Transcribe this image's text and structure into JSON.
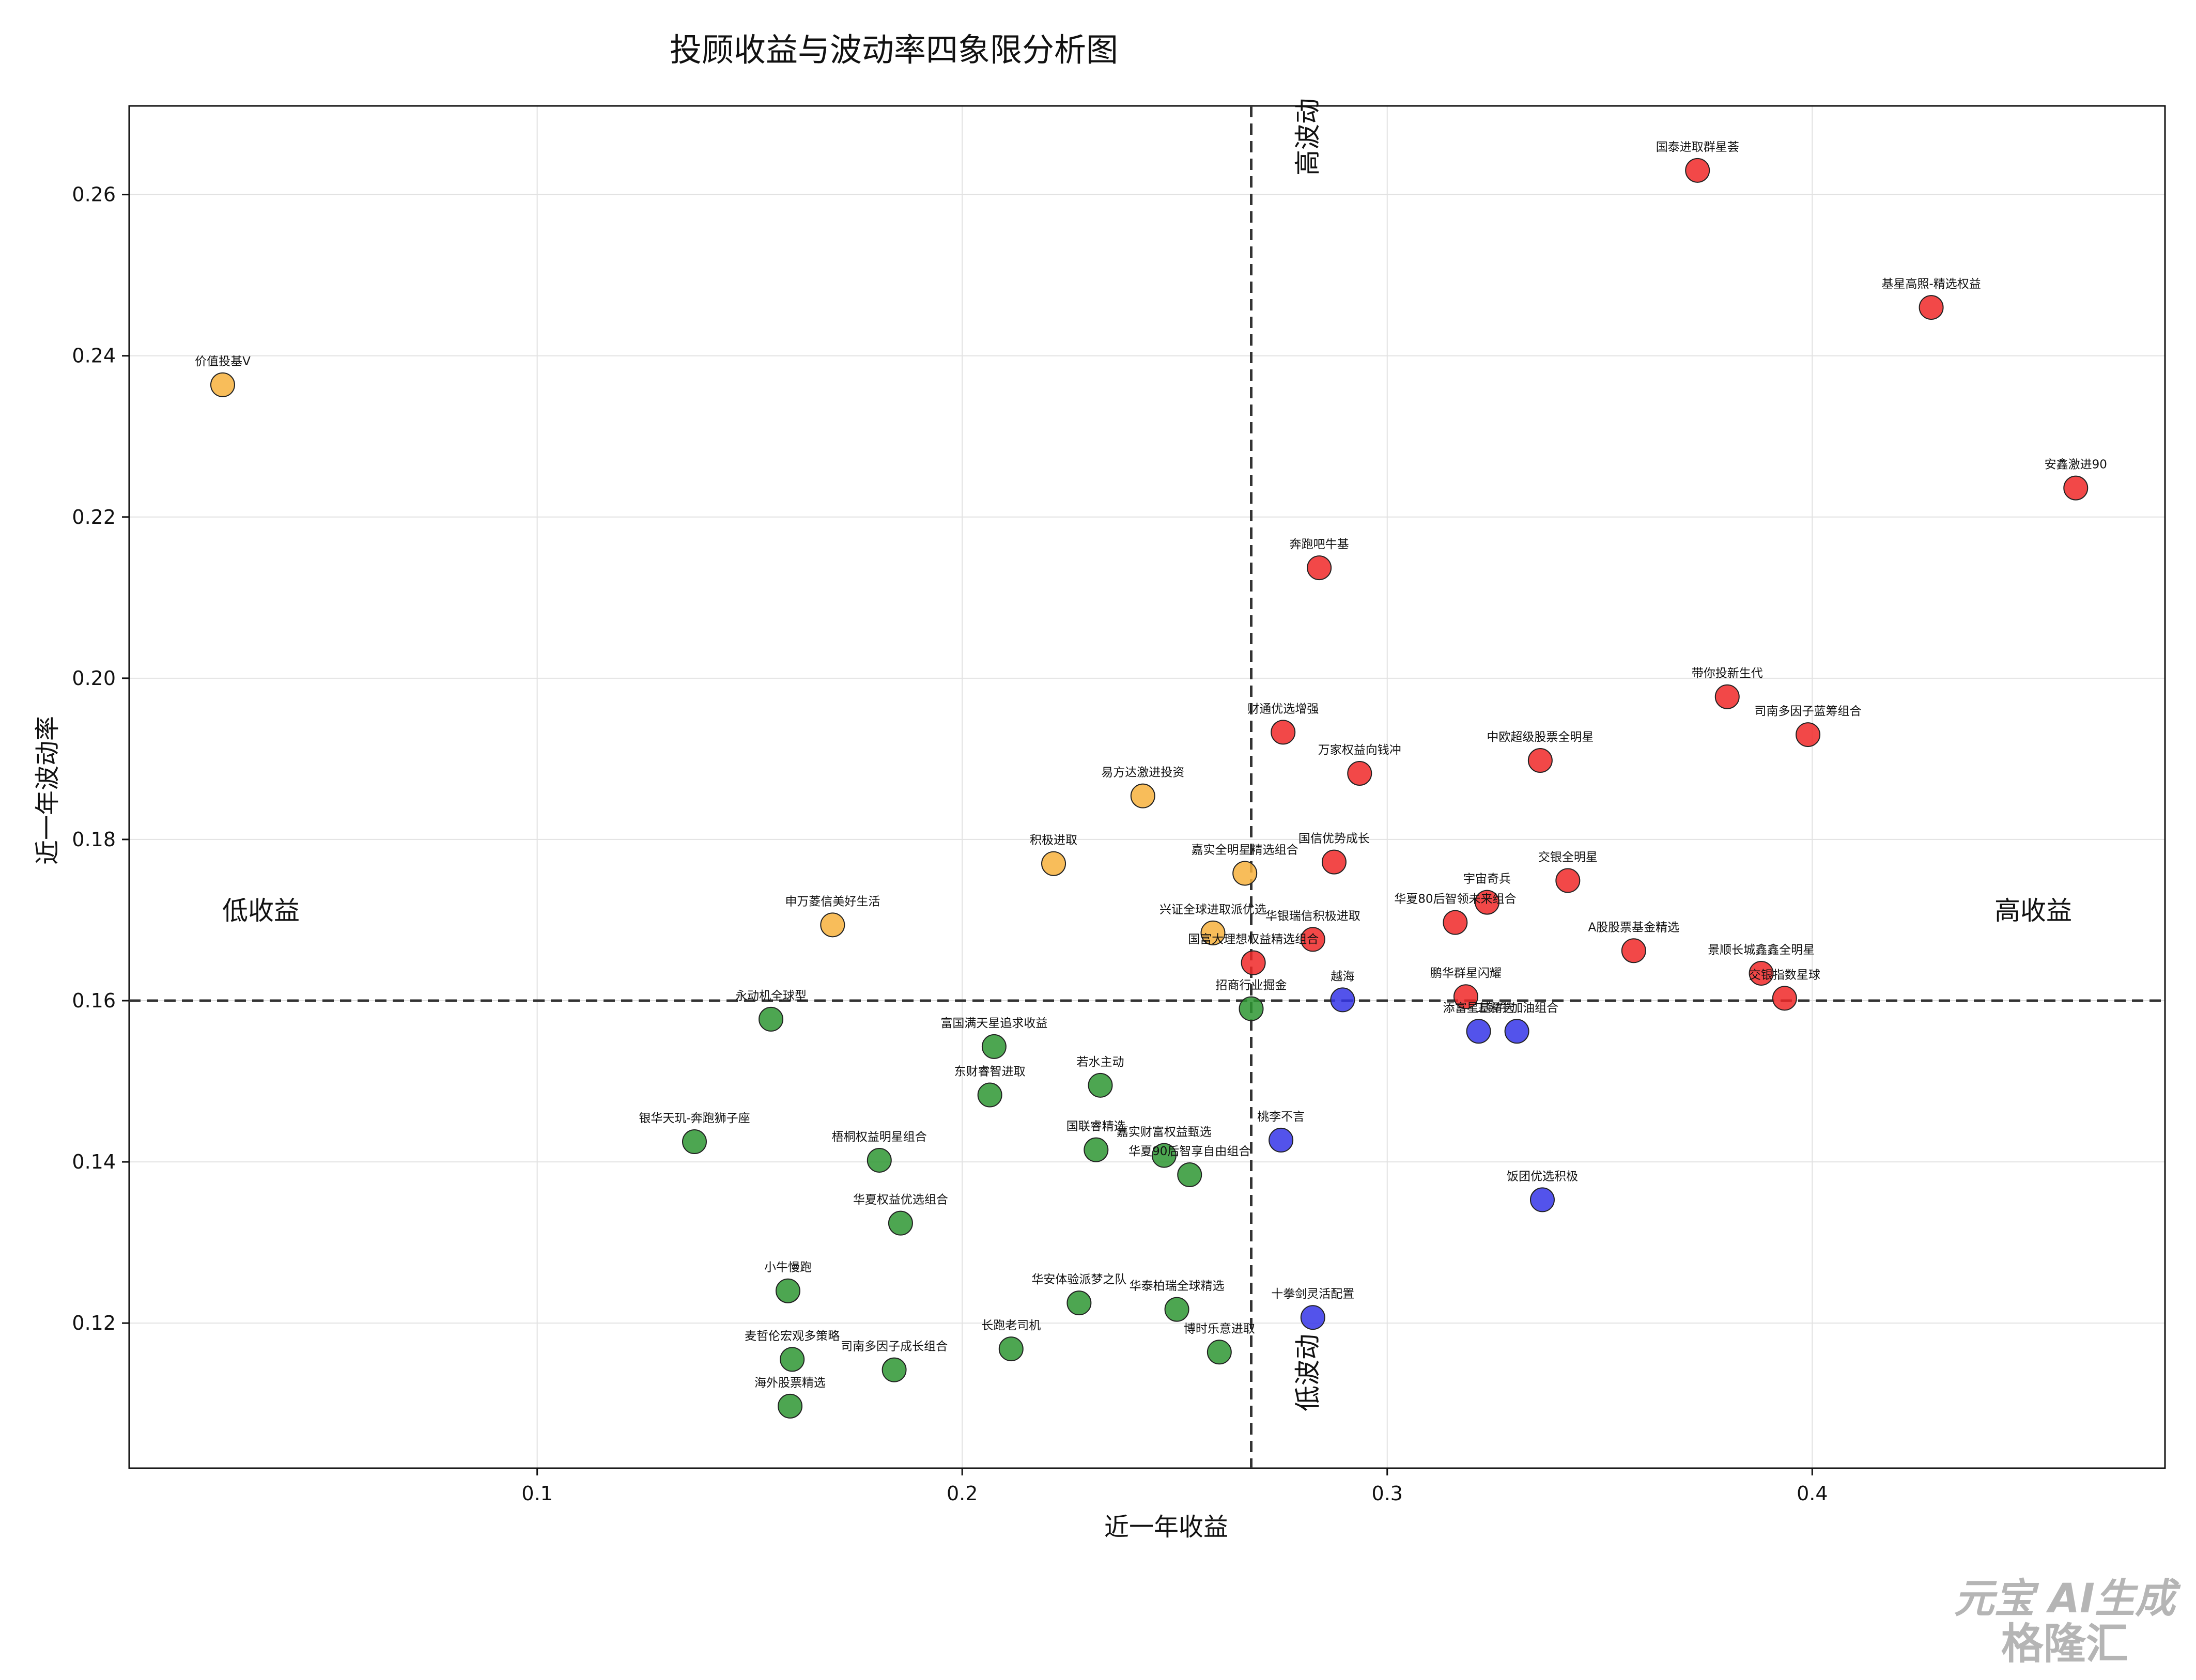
{
  "chart_data": {
    "type": "scatter",
    "title": "投顾收益与波动率四象限分析图",
    "xlabel": "近一年收益",
    "ylabel": "近一年波动率",
    "xlim": [
      0.004,
      0.483
    ],
    "ylim": [
      0.102,
      0.271
    ],
    "xticks": [
      0.1,
      0.2,
      0.3,
      0.4
    ],
    "yticks": [
      0.12,
      0.14,
      0.16,
      0.18,
      0.2,
      0.22,
      0.24,
      0.26
    ],
    "xtick_labels": [
      "0.1",
      "0.2",
      "0.3",
      "0.4"
    ],
    "ytick_labels": [
      "0.12",
      "0.14",
      "0.16",
      "0.18",
      "0.20",
      "0.22",
      "0.24",
      "0.26"
    ],
    "grid": true,
    "divider_x": 0.268,
    "divider_y": 0.16,
    "quadrant_labels": {
      "high_volatility": "高波动",
      "low_volatility": "低波动",
      "low_return": "低收益",
      "high_return": "高收益"
    },
    "colors": {
      "red": "#f02828",
      "orange": "#f7b13d",
      "green": "#2e9632",
      "blue": "#3535e8"
    },
    "points": [
      {
        "name": "国泰进取群星荟",
        "x": 0.373,
        "y": 0.263,
        "color": "red"
      },
      {
        "name": "基星高照-精选权益",
        "x": 0.428,
        "y": 0.246,
        "color": "red"
      },
      {
        "name": "安鑫激进90",
        "x": 0.462,
        "y": 0.2236,
        "color": "red"
      },
      {
        "name": "奔跑吧牛基",
        "x": 0.284,
        "y": 0.2137,
        "color": "red"
      },
      {
        "name": "带你投新生代",
        "x": 0.38,
        "y": 0.1977,
        "color": "red"
      },
      {
        "name": "司南多因子蓝筹组合",
        "x": 0.399,
        "y": 0.193,
        "color": "red"
      },
      {
        "name": "财通优选增强",
        "x": 0.2755,
        "y": 0.1933,
        "color": "red"
      },
      {
        "name": "中欧超级股票全明星",
        "x": 0.336,
        "y": 0.1898,
        "color": "red"
      },
      {
        "name": "万家权益向钱冲",
        "x": 0.2935,
        "y": 0.1882,
        "color": "red"
      },
      {
        "name": "国信优势成长",
        "x": 0.2875,
        "y": 0.1772,
        "color": "red"
      },
      {
        "name": "交银全明星",
        "x": 0.3425,
        "y": 0.1749,
        "color": "red"
      },
      {
        "name": "宇宙奇兵",
        "x": 0.3235,
        "y": 0.1722,
        "color": "red"
      },
      {
        "name": "华夏80后智领未来组合",
        "x": 0.316,
        "y": 0.1697,
        "color": "red"
      },
      {
        "name": "华银瑞信积极进取",
        "x": 0.2825,
        "y": 0.1676,
        "color": "red"
      },
      {
        "name": "A股股票基金精选",
        "x": 0.358,
        "y": 0.1662,
        "color": "red"
      },
      {
        "name": "国富大理想权益精选组合",
        "x": 0.2685,
        "y": 0.1647,
        "color": "red"
      },
      {
        "name": "景顺长城鑫鑫全明星",
        "x": 0.388,
        "y": 0.1634,
        "color": "red"
      },
      {
        "name": "交银指数星球",
        "x": 0.3935,
        "y": 0.1603,
        "color": "red"
      },
      {
        "name": "鹏华群星闪耀",
        "x": 0.3185,
        "y": 0.1605,
        "color": "red"
      },
      {
        "name": "价值投基V",
        "x": 0.026,
        "y": 0.2364,
        "color": "orange"
      },
      {
        "name": "易方达激进投资",
        "x": 0.2425,
        "y": 0.1854,
        "color": "orange"
      },
      {
        "name": "积极进取",
        "x": 0.2215,
        "y": 0.177,
        "color": "orange"
      },
      {
        "name": "嘉实全明星精选组合",
        "x": 0.2665,
        "y": 0.1758,
        "color": "orange"
      },
      {
        "name": "申万菱信美好生活",
        "x": 0.1695,
        "y": 0.1694,
        "color": "orange"
      },
      {
        "name": "兴证全球进取派优选",
        "x": 0.259,
        "y": 0.1684,
        "color": "orange"
      },
      {
        "name": "越海",
        "x": 0.2895,
        "y": 0.1601,
        "color": "blue"
      },
      {
        "name": "添富星基精选",
        "x": 0.3215,
        "y": 0.1562,
        "color": "blue"
      },
      {
        "name": "工银牛加油组合",
        "x": 0.3305,
        "y": 0.1562,
        "color": "blue"
      },
      {
        "name": "桃李不言",
        "x": 0.275,
        "y": 0.1427,
        "color": "blue"
      },
      {
        "name": "饭团优选积极",
        "x": 0.3365,
        "y": 0.1353,
        "color": "blue"
      },
      {
        "name": "十拳剑灵活配置",
        "x": 0.2825,
        "y": 0.1207,
        "color": "blue"
      },
      {
        "name": "招商行业掘金",
        "x": 0.268,
        "y": 0.159,
        "color": "green"
      },
      {
        "name": "永动机全球型",
        "x": 0.155,
        "y": 0.1577,
        "color": "green"
      },
      {
        "name": "富国满天星追求收益",
        "x": 0.2075,
        "y": 0.1543,
        "color": "green"
      },
      {
        "name": "若水主动",
        "x": 0.2325,
        "y": 0.1495,
        "color": "green"
      },
      {
        "name": "东财睿智进取",
        "x": 0.2065,
        "y": 0.1483,
        "color": "green"
      },
      {
        "name": "银华天玑-奔跑狮子座",
        "x": 0.137,
        "y": 0.1425,
        "color": "green"
      },
      {
        "name": "国联睿精选",
        "x": 0.2315,
        "y": 0.1415,
        "color": "green"
      },
      {
        "name": "嘉实财富权益甄选",
        "x": 0.2475,
        "y": 0.1408,
        "color": "green"
      },
      {
        "name": "梧桐权益明星组合",
        "x": 0.1805,
        "y": 0.1402,
        "color": "green"
      },
      {
        "name": "华夏90后智享自由组合",
        "x": 0.2535,
        "y": 0.1384,
        "color": "green"
      },
      {
        "name": "华夏权益优选组合",
        "x": 0.1855,
        "y": 0.1324,
        "color": "green"
      },
      {
        "name": "小牛慢跑",
        "x": 0.159,
        "y": 0.124,
        "color": "green"
      },
      {
        "name": "华安体验派梦之队",
        "x": 0.2275,
        "y": 0.1225,
        "color": "green"
      },
      {
        "name": "华泰柏瑞全球精选",
        "x": 0.2505,
        "y": 0.1217,
        "color": "green"
      },
      {
        "name": "麦哲伦宏观多策略",
        "x": 0.16,
        "y": 0.1155,
        "color": "green"
      },
      {
        "name": "长跑老司机",
        "x": 0.2115,
        "y": 0.1168,
        "color": "green"
      },
      {
        "name": "博时乐意进取",
        "x": 0.2605,
        "y": 0.1164,
        "color": "green"
      },
      {
        "name": "司南多因子成长组合",
        "x": 0.184,
        "y": 0.1142,
        "color": "green"
      },
      {
        "name": "海外股票精选",
        "x": 0.1595,
        "y": 0.1097,
        "color": "green"
      }
    ]
  },
  "watermark": {
    "line1": "元宝 AI生成",
    "line2": "格隆汇"
  }
}
